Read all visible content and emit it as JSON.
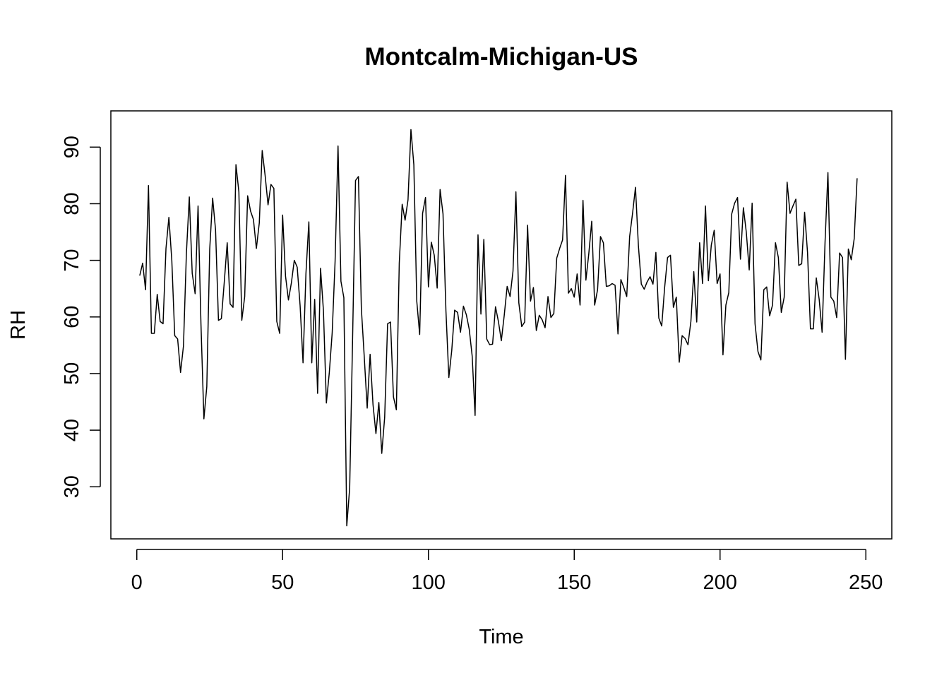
{
  "chart_data": {
    "type": "line",
    "title": "Montcalm-Michigan-US",
    "xlabel": "Time",
    "ylabel": "RH",
    "xlim": [
      -8.9,
      258.9
    ],
    "ylim": [
      20.8,
      96.4
    ],
    "grid": false,
    "x_ticks": [
      0,
      50,
      100,
      150,
      200,
      250
    ],
    "x_tick_labels": [
      "0",
      "50",
      "100",
      "150",
      "200",
      "250"
    ],
    "y_ticks": [
      30,
      40,
      50,
      60,
      70,
      80,
      90
    ],
    "y_tick_labels": [
      "30",
      "40",
      "50",
      "60",
      "70",
      "80",
      "90"
    ],
    "series": [
      {
        "color": "#000000",
        "x_start": 1,
        "x_step": 1,
        "values": [
          67.3,
          69.5,
          64.8,
          83.2,
          57.1,
          57.1,
          64.0,
          59.2,
          58.8,
          72.1,
          77.6,
          70.0,
          56.7,
          56.1,
          50.2,
          54.9,
          71.2,
          81.2,
          67.7,
          64.1,
          79.6,
          58.7,
          42.0,
          47.7,
          72.0,
          81.0,
          75.4,
          59.4,
          59.7,
          66.2,
          73.1,
          62.3,
          61.7,
          86.9,
          82.1,
          59.4,
          63.6,
          81.4,
          78.7,
          77.2,
          72.1,
          76.6,
          89.4,
          85.0,
          79.8,
          83.4,
          82.7,
          59.2,
          57.1,
          78.0,
          67.2,
          63.0,
          66.0,
          70.0,
          68.8,
          62.0,
          51.9,
          67.7,
          76.8,
          51.9,
          63.1,
          46.5,
          68.6,
          61.1,
          44.8,
          50.1,
          57.2,
          69.9,
          90.2,
          66.3,
          63.4,
          23.1,
          29.8,
          56.3,
          84.1,
          84.8,
          61.5,
          52.9,
          43.9,
          53.4,
          44.5,
          39.4,
          44.9,
          35.9,
          42.3,
          58.8,
          59.1,
          45.9,
          43.6,
          69.5,
          79.9,
          77.1,
          80.7,
          93.1,
          86.9,
          62.8,
          56.9,
          78.3,
          81.1,
          65.3,
          73.2,
          70.9,
          65.1,
          82.5,
          78.2,
          61.1,
          49.3,
          54.1,
          61.2,
          60.8,
          57.3,
          61.9,
          60.4,
          57.8,
          53.1,
          42.6,
          74.5,
          60.5,
          73.7,
          56.1,
          55.1,
          55.2,
          61.8,
          59.2,
          55.8,
          60.3,
          65.4,
          63.6,
          68.1,
          82.1,
          62.5,
          58.3,
          59.1,
          76.2,
          62.8,
          65.2,
          57.6,
          60.3,
          59.5,
          58.1,
          63.6,
          59.9,
          60.6,
          70.4,
          72.1,
          73.6,
          85.0,
          64.2,
          65.0,
          63.5,
          67.6,
          62.1,
          80.6,
          66.5,
          71.2,
          76.9,
          62.1,
          64.8,
          74.2,
          73.1,
          65.4,
          65.5,
          65.9,
          65.6,
          57.0,
          66.6,
          65.2,
          63.6,
          74.2,
          78.3,
          82.9,
          72.6,
          65.8,
          64.9,
          66.2,
          67.1,
          65.8,
          71.4,
          59.8,
          58.4,
          65.2,
          70.5,
          70.9,
          61.7,
          63.5,
          52.0,
          56.7,
          56.2,
          55.1,
          59.2,
          68.0,
          59.1,
          73.1,
          65.9,
          79.6,
          66.4,
          72.7,
          75.3,
          65.9,
          67.6,
          53.3,
          62.1,
          64.3,
          78.2,
          80.1,
          81.1,
          70.2,
          79.3,
          75.0,
          68.3,
          80.1,
          58.8,
          53.9,
          52.4,
          64.8,
          65.3,
          60.2,
          62.1,
          73.1,
          70.5,
          60.8,
          63.5,
          83.8,
          78.3,
          79.6,
          80.8,
          69.1,
          69.4,
          78.5,
          71.4,
          57.9,
          57.9,
          66.9,
          63.1,
          57.3,
          73.1,
          85.5,
          63.5,
          62.8,
          59.9,
          71.3,
          70.5,
          52.5,
          72.0,
          70.1,
          73.8,
          84.5
        ]
      }
    ]
  }
}
